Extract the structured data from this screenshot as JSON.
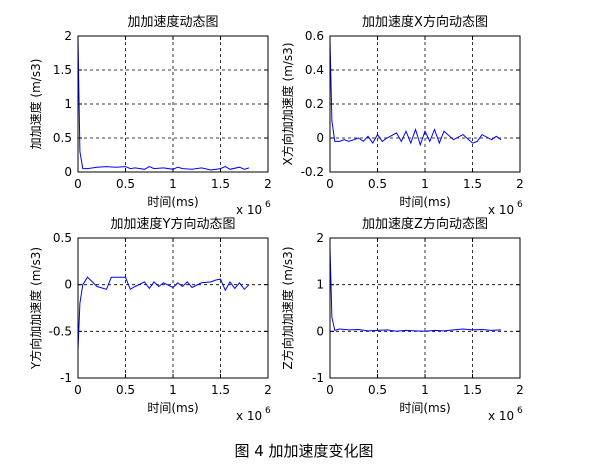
{
  "caption": "图 4 加加速度变化图",
  "colors": {
    "line": "#0000ff",
    "grid": "#000000",
    "axes": "#000000",
    "background": "#ffffff"
  },
  "chart_data": [
    {
      "type": "line",
      "title": "加加速度动态图",
      "xlabel": "时间(ms)",
      "ylabel": "加加速度 (m/s3)",
      "x_multiplier": "x 10",
      "x_multiplier_exp": "6",
      "xlim": [
        0,
        2
      ],
      "ylim": [
        0,
        2
      ],
      "xticks": [
        "0",
        "0.5",
        "1",
        "1.5",
        "2"
      ],
      "yticks": [
        "0",
        "0.5",
        "1",
        "1.5",
        "2"
      ],
      "grid": true,
      "series": [
        {
          "x": [
            0,
            0.02,
            0.05,
            0.1,
            0.2,
            0.3,
            0.4,
            0.5,
            0.55,
            0.6,
            0.7,
            0.75,
            0.8,
            0.9,
            1.0,
            1.05,
            1.1,
            1.2,
            1.3,
            1.4,
            1.5,
            1.55,
            1.6,
            1.7,
            1.75,
            1.8
          ],
          "y": [
            2.0,
            0.3,
            0.05,
            0.05,
            0.07,
            0.08,
            0.07,
            0.08,
            0.05,
            0.06,
            0.04,
            0.08,
            0.05,
            0.06,
            0.04,
            0.07,
            0.05,
            0.04,
            0.06,
            0.03,
            0.05,
            0.08,
            0.04,
            0.07,
            0.04,
            0.06
          ]
        }
      ]
    },
    {
      "type": "line",
      "title": "加加速度X方向动态图",
      "xlabel": "时间(ms)",
      "ylabel": "X方向加加速度 (m/s3)",
      "x_multiplier": "x 10",
      "x_multiplier_exp": "6",
      "xlim": [
        0,
        2
      ],
      "ylim": [
        -0.2,
        0.6
      ],
      "xticks": [
        "0",
        "0.5",
        "1",
        "1.5",
        "2"
      ],
      "yticks": [
        "-0.2",
        "0",
        "0.2",
        "0.4",
        "0.6"
      ],
      "grid": true,
      "series": [
        {
          "x": [
            0,
            0.02,
            0.05,
            0.1,
            0.15,
            0.2,
            0.3,
            0.35,
            0.4,
            0.45,
            0.5,
            0.55,
            0.6,
            0.7,
            0.75,
            0.8,
            0.85,
            0.9,
            0.95,
            1.0,
            1.05,
            1.1,
            1.15,
            1.2,
            1.3,
            1.4,
            1.5,
            1.55,
            1.6,
            1.7,
            1.75,
            1.8
          ],
          "y": [
            0.58,
            0.1,
            -0.02,
            -0.02,
            -0.01,
            -0.02,
            0.0,
            -0.02,
            0.01,
            -0.03,
            0.02,
            -0.02,
            0.0,
            0.03,
            -0.02,
            0.04,
            -0.03,
            0.05,
            -0.04,
            0.04,
            -0.02,
            0.05,
            -0.03,
            0.04,
            -0.01,
            0.02,
            -0.03,
            -0.02,
            0.02,
            -0.01,
            0.01,
            -0.01
          ]
        }
      ]
    },
    {
      "type": "line",
      "title": "加加速度Y方向动态图",
      "xlabel": "时间(ms)",
      "ylabel": "Y方向加加速度 (m/s3)",
      "x_multiplier": "x 10",
      "x_multiplier_exp": "6",
      "xlim": [
        0,
        2
      ],
      "ylim": [
        -1,
        0.5
      ],
      "xticks": [
        "0",
        "0.5",
        "1",
        "1.5",
        "2"
      ],
      "yticks": [
        "-1",
        "-0.5",
        "0",
        "0.5"
      ],
      "grid": true,
      "series": [
        {
          "x": [
            0,
            0.02,
            0.05,
            0.1,
            0.2,
            0.3,
            0.35,
            0.5,
            0.55,
            0.6,
            0.7,
            0.75,
            0.8,
            0.85,
            0.9,
            1.0,
            1.05,
            1.1,
            1.15,
            1.2,
            1.3,
            1.4,
            1.45,
            1.5,
            1.55,
            1.6,
            1.65,
            1.7,
            1.75,
            1.8
          ],
          "y": [
            -0.7,
            -0.2,
            0.0,
            0.08,
            -0.02,
            -0.05,
            0.08,
            0.08,
            -0.05,
            -0.02,
            0.03,
            -0.04,
            0.03,
            -0.02,
            0.02,
            -0.03,
            0.02,
            -0.02,
            0.03,
            -0.03,
            0.02,
            0.03,
            0.05,
            0.06,
            -0.06,
            0.03,
            -0.04,
            0.02,
            -0.05,
            0.0
          ]
        }
      ]
    },
    {
      "type": "line",
      "title": "加加速度Z方向动态图",
      "xlabel": "时间(ms)",
      "ylabel": "Z方向加加速度 (m/s3)",
      "x_multiplier": "x 10",
      "x_multiplier_exp": "6",
      "xlim": [
        0,
        2
      ],
      "ylim": [
        -1,
        2
      ],
      "xticks": [
        "0",
        "0.5",
        "1",
        "1.5",
        "2"
      ],
      "yticks": [
        "-1",
        "0",
        "1",
        "2"
      ],
      "grid": true,
      "series": [
        {
          "x": [
            0,
            0.02,
            0.05,
            0.1,
            0.2,
            0.3,
            0.4,
            0.5,
            0.6,
            0.7,
            0.8,
            0.9,
            1.0,
            1.1,
            1.2,
            1.3,
            1.4,
            1.5,
            1.6,
            1.7,
            1.8
          ],
          "y": [
            1.8,
            0.3,
            0.02,
            0.05,
            0.03,
            0.04,
            0.01,
            0.02,
            0.03,
            0.0,
            0.02,
            0.01,
            0.0,
            0.02,
            0.01,
            0.03,
            0.05,
            0.03,
            0.04,
            0.02,
            0.03
          ]
        }
      ]
    }
  ]
}
